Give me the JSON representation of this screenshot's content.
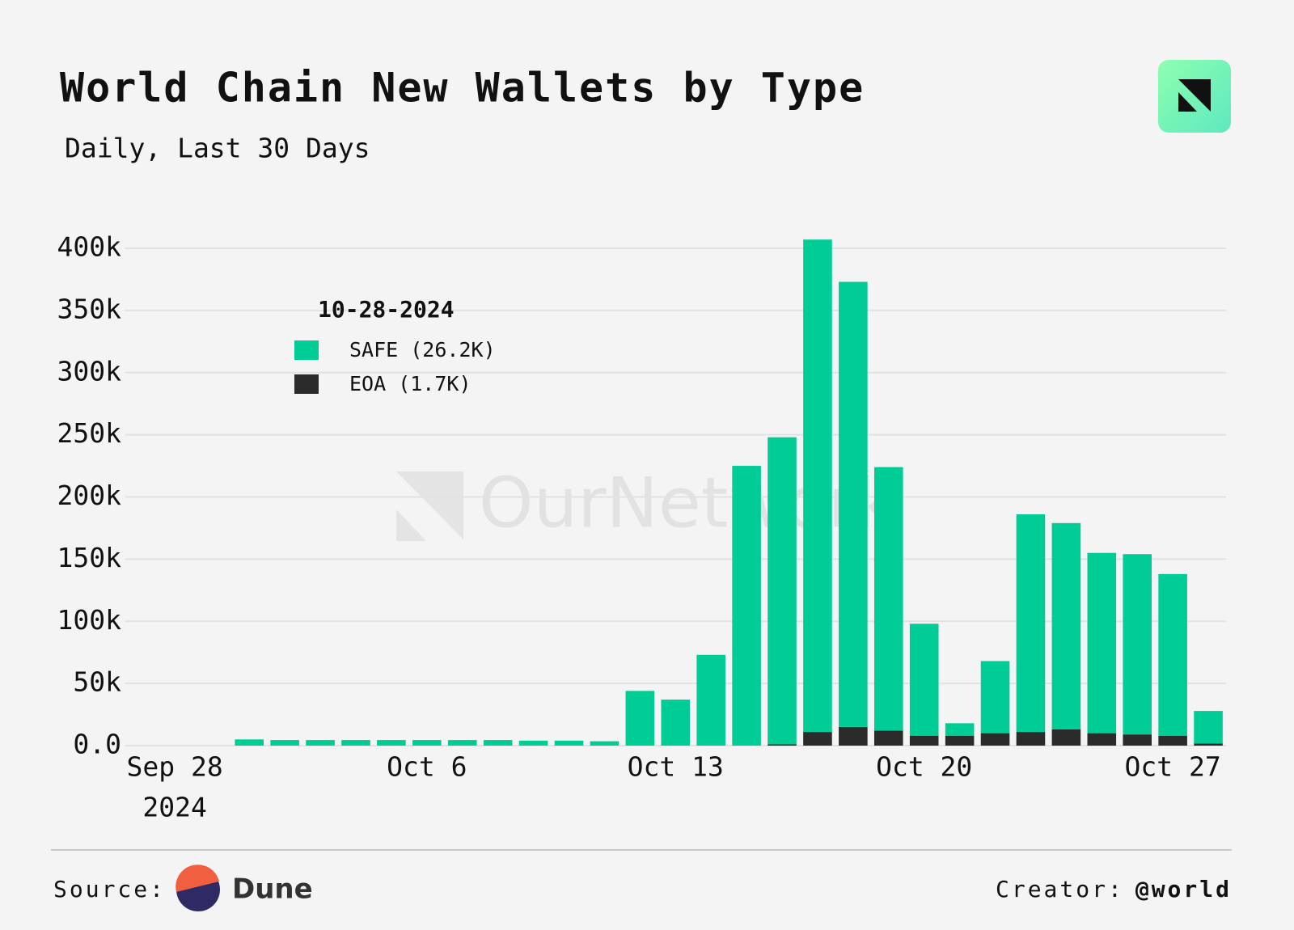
{
  "chart_data": {
    "type": "stacked_bar",
    "title": "World Chain New Wallets by Type",
    "subtitle": "Daily, Last 30 Days",
    "categories": [
      "Sep 28",
      null,
      null,
      null,
      null,
      null,
      null,
      null,
      "Oct 6",
      null,
      null,
      null,
      null,
      null,
      null,
      "Oct 13",
      null,
      null,
      null,
      null,
      null,
      null,
      "Oct 20",
      null,
      null,
      null,
      null,
      null,
      null,
      "Oct 27",
      null
    ],
    "x_year_label": "2024",
    "series": [
      {
        "name": "SAFE",
        "color": "#00cc96",
        "values": [
          0,
          0,
          0,
          5000,
          4500,
          4500,
          4500,
          4500,
          4500,
          4500,
          4500,
          4000,
          4000,
          3500,
          44000,
          37000,
          73000,
          225000,
          247000,
          396000,
          358000,
          212000,
          90000,
          10000,
          58000,
          175000,
          166000,
          145000,
          145000,
          130000,
          26200
        ]
      },
      {
        "name": "EOA",
        "color": "#2b2b2b",
        "values": [
          0,
          0,
          0,
          0,
          0,
          0,
          0,
          0,
          0,
          0,
          0,
          0,
          0,
          0,
          0,
          0,
          0,
          0,
          1000,
          11000,
          15000,
          12000,
          8000,
          8000,
          10000,
          11000,
          13000,
          10000,
          9000,
          8000,
          1700
        ]
      }
    ],
    "legend": {
      "title": "10-28-2024",
      "entries": [
        "SAFE (26.2K)",
        "EOA (1.7K)"
      ]
    },
    "ylim": [
      0,
      410000
    ],
    "yticks": [
      {
        "value": 0,
        "label": "0.0"
      },
      {
        "value": 50000,
        "label": "50k"
      },
      {
        "value": 100000,
        "label": "100k"
      },
      {
        "value": 150000,
        "label": "150k"
      },
      {
        "value": 200000,
        "label": "200k"
      },
      {
        "value": 250000,
        "label": "250k"
      },
      {
        "value": 300000,
        "label": "300k"
      },
      {
        "value": 350000,
        "label": "350k"
      },
      {
        "value": 400000,
        "label": "400k"
      }
    ],
    "grid": true,
    "watermark": "OurNetwork",
    "source_label": "Source:",
    "source_name": "Dune",
    "creator_label": "Creator:",
    "creator_name": "@world"
  }
}
